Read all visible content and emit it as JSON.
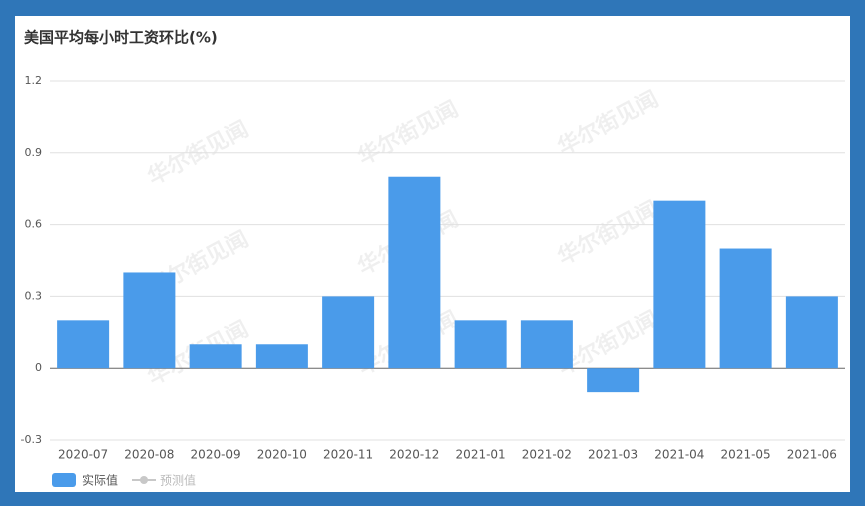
{
  "chart_data": {
    "type": "bar",
    "title": "美国平均每小时工资环比(%)",
    "categories": [
      "2020-07",
      "2020-08",
      "2020-09",
      "2020-10",
      "2020-11",
      "2020-12",
      "2021-01",
      "2021-02",
      "2021-03",
      "2021-04",
      "2021-05",
      "2021-06"
    ],
    "series": [
      {
        "name": "实际值",
        "color": "#4a9bea",
        "values": [
          0.2,
          0.4,
          0.1,
          0.1,
          0.3,
          0.8,
          0.2,
          0.2,
          -0.1,
          0.7,
          0.5,
          0.3
        ]
      },
      {
        "name": "预测值",
        "color": "#c8c8c8",
        "values": [
          null,
          null,
          null,
          null,
          null,
          null,
          null,
          null,
          null,
          null,
          null,
          null
        ]
      }
    ],
    "ylim": [
      -0.3,
      1.2
    ],
    "yticks": [
      -0.3,
      0,
      0.3,
      0.6,
      0.9,
      1.2
    ],
    "grid": true,
    "watermark": "华尔街见闻"
  }
}
